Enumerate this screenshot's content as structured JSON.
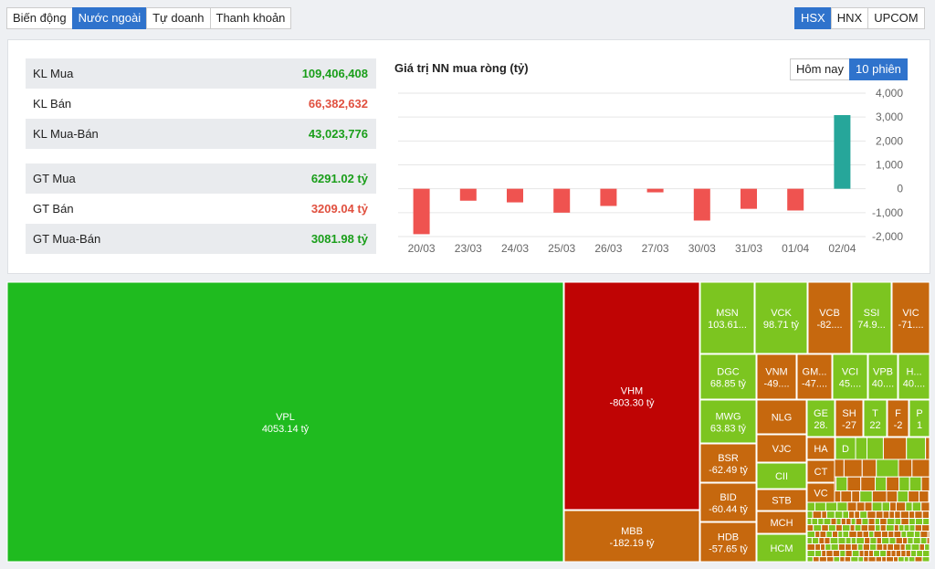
{
  "tabs": [
    {
      "label": "Biến động"
    },
    {
      "label": "Nước ngoài",
      "active": true
    },
    {
      "label": "Tự doanh"
    },
    {
      "label": "Thanh khoản"
    }
  ],
  "exchanges": [
    {
      "label": "HSX",
      "active": true
    },
    {
      "label": "HNX"
    },
    {
      "label": "UPCOM"
    }
  ],
  "stats": [
    [
      {
        "label": "KL Mua",
        "value": "109,406,408",
        "color": "#1a9e1a"
      },
      {
        "label": "KL Bán",
        "value": "66,382,632",
        "color": "#e0503f"
      },
      {
        "label": "KL Mua-Bán",
        "value": "43,023,776",
        "color": "#1a9e1a"
      }
    ],
    [
      {
        "label": "GT Mua",
        "value": "6291.02 tỷ",
        "color": "#1a9e1a"
      },
      {
        "label": "GT Bán",
        "value": "3209.04 tỷ",
        "color": "#e0503f"
      },
      {
        "label": "GT Mua-Bán",
        "value": "3081.98 tỷ",
        "color": "#1a9e1a"
      }
    ]
  ],
  "chart_toggle": [
    {
      "label": "Hôm nay"
    },
    {
      "label": "10 phiên",
      "active": true
    }
  ],
  "chart_data": {
    "type": "bar",
    "title": "Giá trị NN mua ròng (tỷ)",
    "categories": [
      "20/03",
      "23/03",
      "24/03",
      "25/03",
      "26/03",
      "27/03",
      "30/03",
      "31/03",
      "01/04",
      "02/04"
    ],
    "values": [
      -1900,
      -500,
      -570,
      -1000,
      -720,
      -150,
      -1330,
      -840,
      -910,
      3082
    ],
    "positive_color": "#26a69a",
    "negative_color": "#ef5350",
    "ylim": [
      -2000,
      4000
    ],
    "yticks": [
      {
        "value": 4000,
        "label": "4,000"
      },
      {
        "value": 3000,
        "label": "3,000"
      },
      {
        "value": 2000,
        "label": "2,000"
      },
      {
        "value": 1000,
        "label": "1,000"
      },
      0,
      {
        "value": -1000,
        "label": "-1,000"
      },
      {
        "value": -2000,
        "label": "-2,000"
      }
    ],
    "grid": true
  },
  "treemap": {
    "tiles": [
      {
        "label": "VPL",
        "value": 4053.14,
        "value_label": "4053.14 tỷ",
        "color": "#1fbb1f"
      },
      {
        "label": "VHM",
        "value": -803.3,
        "value_label": "-803.30 tỷ",
        "color": "#bf0404"
      },
      {
        "label": "MBB",
        "value": -182.19,
        "value_label": "-182.19 tỷ",
        "color": "#c6680e"
      },
      {
        "label": "MSN",
        "value": 103.61,
        "value_label": "103.61...",
        "color": "#7cc520"
      },
      {
        "label": "VCK",
        "value": 98.71,
        "value_label": "98.71 tỷ",
        "color": "#7cc520"
      },
      {
        "label": "VCB",
        "value": -82,
        "value_label": "-82....",
        "color": "#c6680e"
      },
      {
        "label": "SSI",
        "value": 74.9,
        "value_label": "74.9...",
        "color": "#7cc520"
      },
      {
        "label": "VIC",
        "value": -71,
        "value_label": "-71....",
        "color": "#c6680e"
      },
      {
        "label": "DGC",
        "value": 68.85,
        "value_label": "68.85 tỷ",
        "color": "#7cc520"
      },
      {
        "label": "VNM",
        "value": -49,
        "value_label": "-49....",
        "color": "#c6680e"
      },
      {
        "label": "GM...",
        "value": -47,
        "value_label": "-47....",
        "color": "#c6680e"
      },
      {
        "label": "VCI",
        "value": 45,
        "value_label": "45....",
        "color": "#7cc520"
      },
      {
        "label": "VPB",
        "value": 40,
        "value_label": "40....",
        "color": "#7cc520"
      },
      {
        "label": "H...",
        "value": 40,
        "value_label": "40....",
        "color": "#7cc520"
      },
      {
        "label": "MWG",
        "value": 63.83,
        "value_label": "63.83 tỷ",
        "color": "#7cc520"
      },
      {
        "label": "NLG",
        "color": "#c6680e"
      },
      {
        "label": "GE",
        "value": 28,
        "value_label": "28.",
        "color": "#7cc520"
      },
      {
        "label": "SH",
        "value": -27,
        "color": "#c6680e"
      },
      {
        "label": "T",
        "value": 22,
        "color": "#7cc520"
      },
      {
        "label": "F",
        "value": -2,
        "color": "#c6680e"
      },
      {
        "label": "P",
        "value": 1,
        "color": "#7cc520"
      },
      {
        "label": "BSR",
        "value": -62.49,
        "value_label": "-62.49 tỷ",
        "color": "#c6680e"
      },
      {
        "label": "VJC",
        "color": "#c6680e"
      },
      {
        "label": "HA",
        "color": "#c6680e"
      },
      {
        "label": "D",
        "color": "#7cc520"
      },
      {
        "label": "CII",
        "color": "#7cc520"
      },
      {
        "label": "CT",
        "color": "#c6680e"
      },
      {
        "label": "BID",
        "value": -60.44,
        "value_label": "-60.44 tỷ",
        "color": "#c6680e"
      },
      {
        "label": "STB",
        "color": "#c6680e"
      },
      {
        "label": "VC",
        "color": "#c6680e"
      },
      {
        "label": "MCH",
        "color": "#c6680e"
      },
      {
        "label": "HDB",
        "value": -57.65,
        "value_label": "-57.65 tỷ",
        "color": "#c6680e"
      },
      {
        "label": "HCM",
        "color": "#7cc520"
      }
    ]
  }
}
